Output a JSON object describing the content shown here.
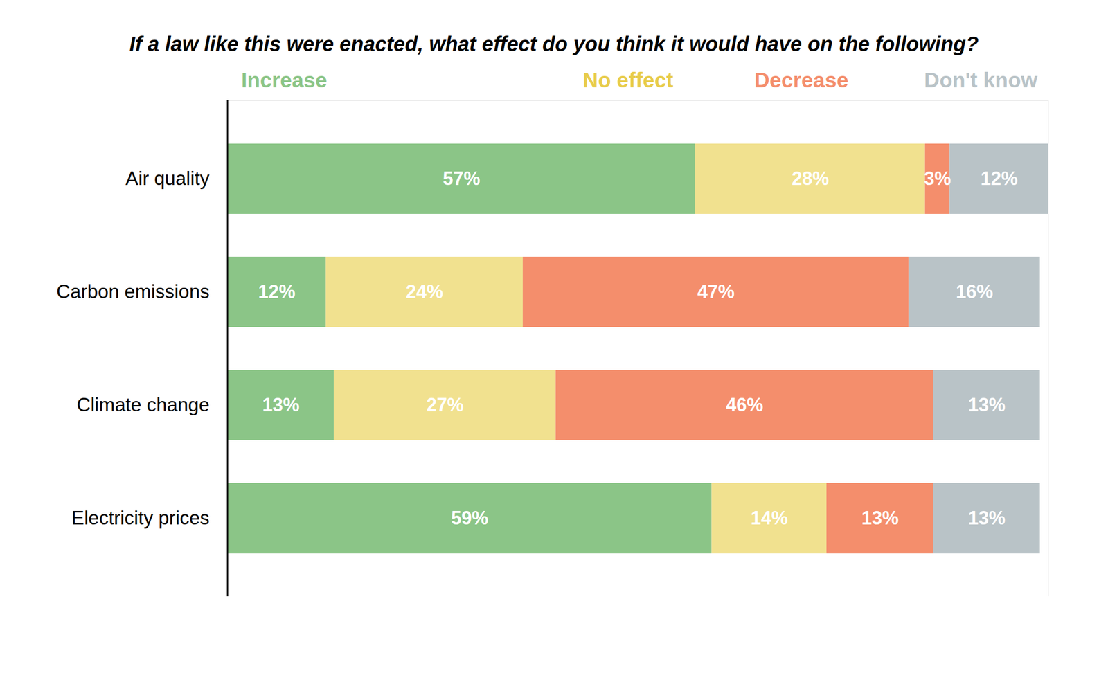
{
  "chart_data": {
    "type": "bar",
    "orientation": "horizontal",
    "stacked": true,
    "data_labels": true,
    "tick_labels": "y",
    "legend": "top",
    "title": "If a law like this were enacted, what effect do you think it would have on the following?",
    "categories": [
      "Air quality",
      "Carbon emissions",
      "Climate change",
      "Electricity prices"
    ],
    "xlim": [
      0,
      100
    ],
    "series": [
      {
        "name": "Increase",
        "color": "#8bc587",
        "values": [
          57,
          12,
          13,
          59
        ],
        "value_labels": [
          "57%",
          "12%",
          "13%",
          "59%"
        ]
      },
      {
        "name": "No effect",
        "color": "#f1e18f",
        "values": [
          28,
          24,
          27,
          14
        ],
        "value_labels": [
          "28%",
          "24%",
          "27%",
          "14%"
        ]
      },
      {
        "name": "Decrease",
        "color": "#f48e6c",
        "values": [
          3,
          47,
          46,
          13
        ],
        "value_labels": [
          "3%",
          "47%",
          "46%",
          "13%"
        ]
      },
      {
        "name": "Don't know",
        "color": "#b9c3c7",
        "values": [
          12,
          16,
          13,
          13
        ],
        "value_labels": [
          "12%",
          "16%",
          "13%",
          "13%"
        ]
      }
    ]
  }
}
